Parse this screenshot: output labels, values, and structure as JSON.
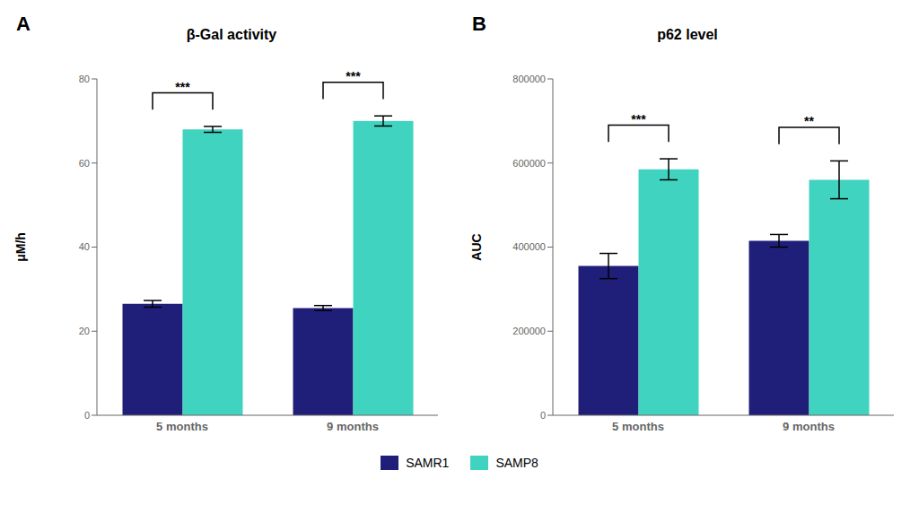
{
  "chart_data": [
    {
      "type": "bar",
      "panel_label": "A",
      "title": "β-Gal activity",
      "y_label": "μM/h",
      "categories": [
        "5 months",
        "9 months"
      ],
      "series": [
        {
          "name": "SAMR1",
          "color": "#1f1f7a",
          "values": [
            26.5,
            25.5
          ],
          "errors": [
            0.8,
            0.6
          ]
        },
        {
          "name": "SAMP8",
          "color": "#40d4c0",
          "values": [
            68.0,
            70.0
          ],
          "errors": [
            0.7,
            1.2
          ]
        }
      ],
      "ylim": [
        0,
        80
      ],
      "yticks": [
        0,
        20,
        40,
        60,
        80
      ],
      "annotations": [
        {
          "category": "5 months",
          "text": "***"
        },
        {
          "category": "9 months",
          "text": "***"
        }
      ],
      "grid": false,
      "legend": "bottom"
    },
    {
      "type": "bar",
      "panel_label": "B",
      "title": "p62 level",
      "y_label": "AUC",
      "categories": [
        "5 months",
        "9 months"
      ],
      "series": [
        {
          "name": "SAMR1",
          "color": "#1f1f7a",
          "values": [
            355000,
            415000
          ],
          "errors": [
            30000,
            15000
          ]
        },
        {
          "name": "SAMP8",
          "color": "#40d4c0",
          "values": [
            585000,
            560000
          ],
          "errors": [
            25000,
            45000
          ]
        }
      ],
      "ylim": [
        0,
        800000
      ],
      "yticks": [
        0,
        200000,
        400000,
        600000,
        800000
      ],
      "annotations": [
        {
          "category": "5 months",
          "text": "***"
        },
        {
          "category": "9 months",
          "text": "**"
        }
      ],
      "grid": false,
      "legend": "bottom"
    }
  ]
}
